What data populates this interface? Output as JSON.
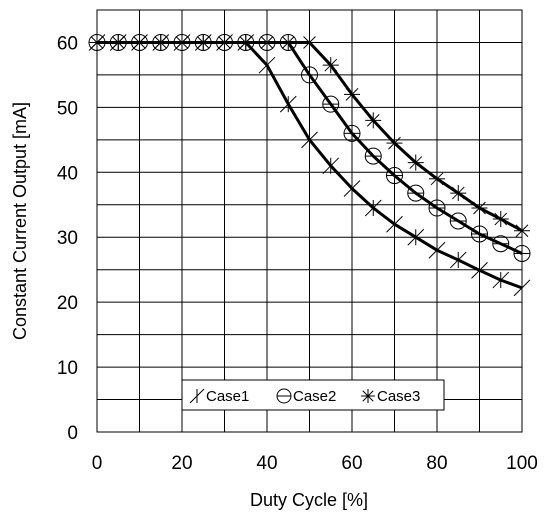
{
  "chart_data": {
    "type": "line",
    "xlabel": "Duty Cycle [%]",
    "ylabel": "Constant Current Output [mA]",
    "xlim": [
      0,
      100
    ],
    "ylim": [
      0,
      65
    ],
    "x_ticks": [
      0,
      20,
      40,
      60,
      80,
      100
    ],
    "y_ticks": [
      0,
      10,
      20,
      30,
      40,
      50,
      60
    ],
    "grid": true,
    "legend_position": "bottom-center",
    "series": [
      {
        "name": "Case1",
        "marker": "plus-diagonal",
        "x": [
          0,
          5,
          10,
          15,
          20,
          25,
          30,
          35,
          40,
          45,
          50,
          55,
          60,
          65,
          70,
          75,
          80,
          85,
          90,
          95,
          100
        ],
        "y": [
          60,
          60,
          60,
          60,
          60,
          60,
          60,
          60,
          56.5,
          50.5,
          45.0,
          41.0,
          37.5,
          34.5,
          32.0,
          30.0,
          28.0,
          26.5,
          24.9,
          23.4,
          22.2
        ]
      },
      {
        "name": "Case2",
        "marker": "circle-bar",
        "x": [
          0,
          5,
          10,
          15,
          20,
          25,
          30,
          35,
          40,
          45,
          50,
          55,
          60,
          65,
          70,
          75,
          80,
          85,
          90,
          95,
          100
        ],
        "y": [
          60,
          60,
          60,
          60,
          60,
          60,
          60,
          60,
          60,
          60,
          55.0,
          50.5,
          46.0,
          42.5,
          39.5,
          36.8,
          34.5,
          32.5,
          30.5,
          29.0,
          27.5
        ]
      },
      {
        "name": "Case3",
        "marker": "asterisk",
        "x": [
          0,
          5,
          10,
          15,
          20,
          25,
          30,
          35,
          40,
          45,
          50,
          55,
          60,
          65,
          70,
          75,
          80,
          85,
          90,
          95,
          100
        ],
        "y": [
          60,
          60,
          60,
          60,
          60,
          60,
          60,
          60,
          60,
          60,
          60,
          56.5,
          52.0,
          48.0,
          44.5,
          41.5,
          39.0,
          36.8,
          34.5,
          32.8,
          31.0
        ]
      }
    ]
  }
}
